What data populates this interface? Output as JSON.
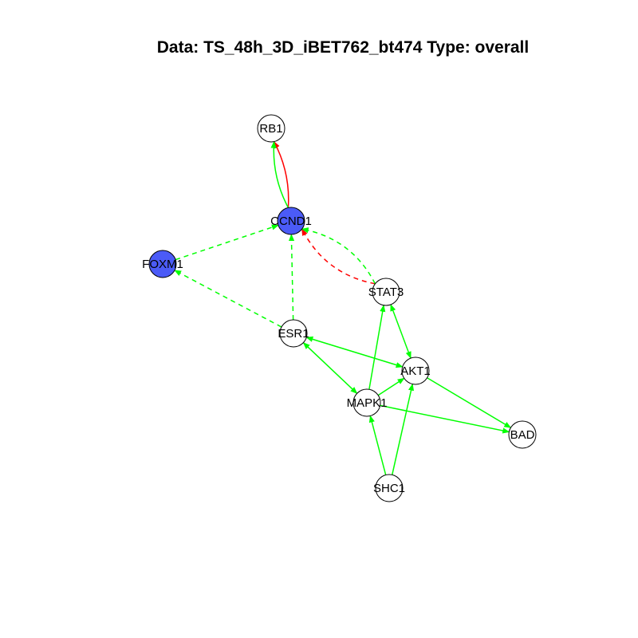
{
  "title": "Data: TS_48h_3D_iBET762_bt474 Type: overall",
  "colors": {
    "activation": "#00ff00",
    "inhibition": "#ff0000",
    "highlight_node": "#4b5bf7",
    "plain_node": "#ffffff",
    "node_border": "#000000"
  },
  "nodes": [
    {
      "id": "RB1",
      "label": "RB1",
      "highlighted": false
    },
    {
      "id": "CCND1",
      "label": "CCND1",
      "highlighted": true
    },
    {
      "id": "FOXM1",
      "label": "FOXM1",
      "highlighted": true
    },
    {
      "id": "STAT3",
      "label": "STAT3",
      "highlighted": false
    },
    {
      "id": "ESR1",
      "label": "ESR1",
      "highlighted": false
    },
    {
      "id": "AKT1",
      "label": "AKT1",
      "highlighted": false
    },
    {
      "id": "MAPK1",
      "label": "MAPK1",
      "highlighted": false
    },
    {
      "id": "BAD",
      "label": "BAD",
      "highlighted": false
    },
    {
      "id": "SHC1",
      "label": "SHC1",
      "highlighted": false
    }
  ],
  "edges": [
    {
      "from": "CCND1",
      "to": "RB1",
      "color": "inhibition",
      "dashed": false,
      "bidirectional": false
    },
    {
      "from": "CCND1",
      "to": "RB1",
      "color": "activation",
      "dashed": false,
      "bidirectional": false
    },
    {
      "from": "FOXM1",
      "to": "CCND1",
      "color": "activation",
      "dashed": true,
      "bidirectional": false
    },
    {
      "from": "ESR1",
      "to": "CCND1",
      "color": "activation",
      "dashed": true,
      "bidirectional": false
    },
    {
      "from": "ESR1",
      "to": "FOXM1",
      "color": "activation",
      "dashed": true,
      "bidirectional": false
    },
    {
      "from": "STAT3",
      "to": "CCND1",
      "color": "inhibition",
      "dashed": true,
      "bidirectional": false
    },
    {
      "from": "STAT3",
      "to": "CCND1",
      "color": "activation",
      "dashed": true,
      "bidirectional": false
    },
    {
      "from": "STAT3",
      "to": "AKT1",
      "color": "activation",
      "dashed": false,
      "bidirectional": true
    },
    {
      "from": "MAPK1",
      "to": "STAT3",
      "color": "activation",
      "dashed": false,
      "bidirectional": false
    },
    {
      "from": "ESR1",
      "to": "AKT1",
      "color": "activation",
      "dashed": false,
      "bidirectional": true
    },
    {
      "from": "ESR1",
      "to": "MAPK1",
      "color": "activation",
      "dashed": false,
      "bidirectional": true
    },
    {
      "from": "MAPK1",
      "to": "AKT1",
      "color": "activation",
      "dashed": false,
      "bidirectional": false
    },
    {
      "from": "AKT1",
      "to": "BAD",
      "color": "activation",
      "dashed": false,
      "bidirectional": false
    },
    {
      "from": "MAPK1",
      "to": "BAD",
      "color": "activation",
      "dashed": false,
      "bidirectional": false
    },
    {
      "from": "SHC1",
      "to": "MAPK1",
      "color": "activation",
      "dashed": false,
      "bidirectional": false
    },
    {
      "from": "SHC1",
      "to": "AKT1",
      "color": "activation",
      "dashed": false,
      "bidirectional": false
    }
  ]
}
